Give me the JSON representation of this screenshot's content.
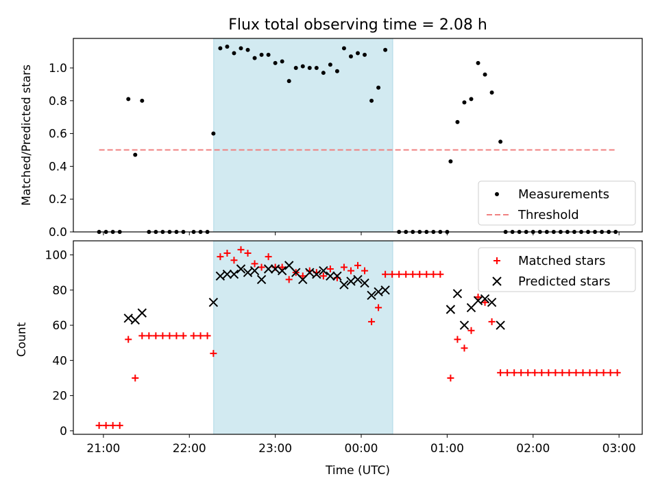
{
  "chart_data": [
    {
      "type": "scatter",
      "title": "Flux total observing time = 2.08 h",
      "xlabel": "",
      "ylabel": "Matched/Predicted stars",
      "ylim": [
        0,
        1.18
      ],
      "yticks": [
        0.0,
        0.2,
        0.4,
        0.6,
        0.8,
        1.0
      ],
      "ytick_labels": [
        "0.0",
        "0.2",
        "0.4",
        "0.6",
        "0.8",
        "1.0"
      ],
      "x_unit": "hours after 21:00 UTC",
      "xlim": [
        -0.35,
        6.27
      ],
      "shaded_interval": {
        "start": "22:17",
        "end": "00:22",
        "color": "#add8e6"
      },
      "legend": {
        "position": "lower right",
        "entries": [
          "Measurements",
          "Threshold"
        ]
      },
      "series": [
        {
          "name": "Measurements",
          "marker": "dot",
          "color": "#000000",
          "points": [
            [
              -0.05,
              0.0
            ],
            [
              0.03,
              0.0
            ],
            [
              0.11,
              0.0
            ],
            [
              0.19,
              0.0
            ],
            [
              0.29,
              0.81
            ],
            [
              0.37,
              0.47
            ],
            [
              0.45,
              0.8
            ],
            [
              0.53,
              0.0
            ],
            [
              0.61,
              0.0
            ],
            [
              0.69,
              0.0
            ],
            [
              0.77,
              0.0
            ],
            [
              0.85,
              0.0
            ],
            [
              0.93,
              0.0
            ],
            [
              1.05,
              0.0
            ],
            [
              1.13,
              0.0
            ],
            [
              1.21,
              0.0
            ],
            [
              1.28,
              0.6
            ],
            [
              1.36,
              1.12
            ],
            [
              1.44,
              1.13
            ],
            [
              1.52,
              1.09
            ],
            [
              1.6,
              1.12
            ],
            [
              1.68,
              1.11
            ],
            [
              1.76,
              1.06
            ],
            [
              1.84,
              1.08
            ],
            [
              1.92,
              1.08
            ],
            [
              2.0,
              1.03
            ],
            [
              2.08,
              1.04
            ],
            [
              2.16,
              0.92
            ],
            [
              2.24,
              1.0
            ],
            [
              2.32,
              1.01
            ],
            [
              2.4,
              1.0
            ],
            [
              2.48,
              1.0
            ],
            [
              2.56,
              0.97
            ],
            [
              2.64,
              1.02
            ],
            [
              2.72,
              0.98
            ],
            [
              2.8,
              1.12
            ],
            [
              2.88,
              1.07
            ],
            [
              2.96,
              1.09
            ],
            [
              3.04,
              1.08
            ],
            [
              3.12,
              0.8
            ],
            [
              3.2,
              0.88
            ],
            [
              3.28,
              1.11
            ],
            [
              3.44,
              0.0
            ],
            [
              3.52,
              0.0
            ],
            [
              3.6,
              0.0
            ],
            [
              3.68,
              0.0
            ],
            [
              3.76,
              0.0
            ],
            [
              3.84,
              0.0
            ],
            [
              3.92,
              0.0
            ],
            [
              4.0,
              0.0
            ],
            [
              4.04,
              0.43
            ],
            [
              4.12,
              0.67
            ],
            [
              4.2,
              0.79
            ],
            [
              4.28,
              0.81
            ],
            [
              4.36,
              1.03
            ],
            [
              4.44,
              0.96
            ],
            [
              4.52,
              0.85
            ],
            [
              4.62,
              0.55
            ],
            [
              4.68,
              0.0
            ],
            [
              4.76,
              0.0
            ],
            [
              4.84,
              0.0
            ],
            [
              4.92,
              0.0
            ],
            [
              5.0,
              0.0
            ],
            [
              5.08,
              0.0
            ],
            [
              5.16,
              0.0
            ],
            [
              5.24,
              0.0
            ],
            [
              5.32,
              0.0
            ],
            [
              5.4,
              0.0
            ],
            [
              5.48,
              0.0
            ],
            [
              5.56,
              0.0
            ],
            [
              5.64,
              0.0
            ],
            [
              5.72,
              0.0
            ],
            [
              5.8,
              0.0
            ],
            [
              5.88,
              0.0
            ],
            [
              5.96,
              0.0
            ]
          ]
        },
        {
          "name": "Threshold",
          "type": "line",
          "style": "dashed",
          "color": "#f08080",
          "points": [
            [
              -0.05,
              0.5
            ],
            [
              5.96,
              0.5
            ]
          ]
        }
      ]
    },
    {
      "type": "scatter",
      "title": "",
      "xlabel": "Time (UTC)",
      "ylabel": "Count",
      "ylim": [
        -2,
        108
      ],
      "yticks": [
        0,
        20,
        40,
        60,
        80,
        100
      ],
      "ytick_labels": [
        "0",
        "20",
        "40",
        "60",
        "80",
        "100"
      ],
      "x_unit": "hours after 21:00 UTC",
      "xlim": [
        -0.35,
        6.27
      ],
      "xticks": [
        0,
        1,
        2,
        3,
        4,
        5,
        6
      ],
      "xtick_labels": [
        "21:00",
        "22:00",
        "23:00",
        "00:00",
        "01:00",
        "02:00",
        "03:00"
      ],
      "shaded_interval": {
        "start": "22:17",
        "end": "00:22",
        "color": "#add8e6"
      },
      "legend": {
        "position": "upper right",
        "entries": [
          "Matched stars",
          "Predicted stars"
        ]
      },
      "series": [
        {
          "name": "Matched stars",
          "marker": "plus",
          "color": "#ff0000",
          "points": [
            [
              -0.05,
              3
            ],
            [
              0.03,
              3
            ],
            [
              0.11,
              3
            ],
            [
              0.19,
              3
            ],
            [
              0.29,
              52
            ],
            [
              0.37,
              30
            ],
            [
              0.45,
              54
            ],
            [
              0.53,
              54
            ],
            [
              0.61,
              54
            ],
            [
              0.69,
              54
            ],
            [
              0.77,
              54
            ],
            [
              0.85,
              54
            ],
            [
              0.93,
              54
            ],
            [
              1.05,
              54
            ],
            [
              1.13,
              54
            ],
            [
              1.21,
              54
            ],
            [
              1.28,
              44
            ],
            [
              1.36,
              99
            ],
            [
              1.44,
              101
            ],
            [
              1.52,
              97
            ],
            [
              1.6,
              103
            ],
            [
              1.68,
              101
            ],
            [
              1.76,
              95
            ],
            [
              1.84,
              93
            ],
            [
              1.92,
              99
            ],
            [
              2.0,
              93
            ],
            [
              2.08,
              93
            ],
            [
              2.16,
              86
            ],
            [
              2.24,
              90
            ],
            [
              2.32,
              88
            ],
            [
              2.4,
              91
            ],
            [
              2.48,
              90
            ],
            [
              2.56,
              88
            ],
            [
              2.64,
              92
            ],
            [
              2.72,
              87
            ],
            [
              2.8,
              93
            ],
            [
              2.88,
              91
            ],
            [
              2.96,
              94
            ],
            [
              3.04,
              91
            ],
            [
              3.12,
              62
            ],
            [
              3.2,
              70
            ],
            [
              3.28,
              89
            ],
            [
              3.36,
              89
            ],
            [
              3.44,
              89
            ],
            [
              3.52,
              89
            ],
            [
              3.6,
              89
            ],
            [
              3.68,
              89
            ],
            [
              3.76,
              89
            ],
            [
              3.84,
              89
            ],
            [
              3.92,
              89
            ],
            [
              4.04,
              30
            ],
            [
              4.12,
              52
            ],
            [
              4.2,
              47
            ],
            [
              4.28,
              57
            ],
            [
              4.36,
              76
            ],
            [
              4.44,
              73
            ],
            [
              4.52,
              62
            ],
            [
              4.62,
              33
            ],
            [
              4.7,
              33
            ],
            [
              4.78,
              33
            ],
            [
              4.86,
              33
            ],
            [
              4.94,
              33
            ],
            [
              5.02,
              33
            ],
            [
              5.1,
              33
            ],
            [
              5.18,
              33
            ],
            [
              5.26,
              33
            ],
            [
              5.34,
              33
            ],
            [
              5.42,
              33
            ],
            [
              5.5,
              33
            ],
            [
              5.58,
              33
            ],
            [
              5.66,
              33
            ],
            [
              5.74,
              33
            ],
            [
              5.82,
              33
            ],
            [
              5.9,
              33
            ],
            [
              5.98,
              33
            ]
          ]
        },
        {
          "name": "Predicted stars",
          "marker": "x",
          "color": "#000000",
          "points": [
            [
              0.29,
              64
            ],
            [
              0.37,
              63
            ],
            [
              0.45,
              67
            ],
            [
              1.28,
              73
            ],
            [
              1.36,
              88
            ],
            [
              1.44,
              89
            ],
            [
              1.52,
              89
            ],
            [
              1.6,
              92
            ],
            [
              1.68,
              90
            ],
            [
              1.76,
              91
            ],
            [
              1.84,
              86
            ],
            [
              1.92,
              92
            ],
            [
              2.0,
              92
            ],
            [
              2.08,
              91
            ],
            [
              2.16,
              94
            ],
            [
              2.24,
              90
            ],
            [
              2.32,
              86
            ],
            [
              2.4,
              90
            ],
            [
              2.48,
              89
            ],
            [
              2.56,
              91
            ],
            [
              2.64,
              88
            ],
            [
              2.72,
              88
            ],
            [
              2.8,
              83
            ],
            [
              2.88,
              85
            ],
            [
              2.96,
              86
            ],
            [
              3.04,
              84
            ],
            [
              3.12,
              77
            ],
            [
              3.2,
              79
            ],
            [
              3.28,
              80
            ],
            [
              4.04,
              69
            ],
            [
              4.12,
              78
            ],
            [
              4.2,
              60
            ],
            [
              4.28,
              70
            ],
            [
              4.36,
              74
            ],
            [
              4.44,
              75
            ],
            [
              4.52,
              73
            ],
            [
              4.62,
              60
            ]
          ]
        }
      ]
    }
  ]
}
